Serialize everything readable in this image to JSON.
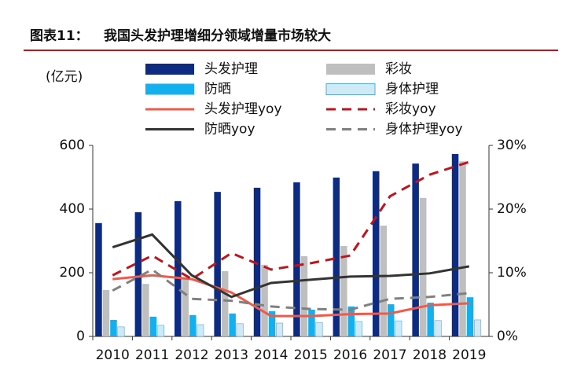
{
  "chart_data": {
    "type": "bar-line",
    "title": "图表11：",
    "subtitle": "我国头发护理增细分领域增量市场较大",
    "y_unit_label": "(亿元)",
    "categories": [
      "2010",
      "2011",
      "2012",
      "2013",
      "2014",
      "2015",
      "2016",
      "2017",
      "2018",
      "2019"
    ],
    "series": [
      {
        "name": "头发护理",
        "color": "#0d2b80",
        "kind": "bar",
        "values": [
          356,
          390,
          425,
          454,
          467,
          484,
          499,
          519,
          543,
          573
        ]
      },
      {
        "name": "彩妆",
        "color": "#bfbfbf",
        "kind": "bar",
        "values": [
          146,
          165,
          185,
          205,
          225,
          252,
          284,
          348,
          435,
          550
        ]
      },
      {
        "name": "防晒",
        "color": "#12b0ee",
        "kind": "bar",
        "values": [
          52,
          62,
          67,
          72,
          79,
          84,
          94,
          101,
          106,
          123
        ]
      },
      {
        "name": "身体护理",
        "color": "#cfe9f7",
        "kind": "bar",
        "values": [
          30,
          35,
          37,
          40,
          42,
          44,
          47,
          49,
          50,
          52
        ]
      },
      {
        "name": "头发护理yoy",
        "color": "#f05a4a",
        "kind": "line",
        "dash": false,
        "axis": "y2",
        "values": [
          9.0,
          9.6,
          9.0,
          6.9,
          3.2,
          3.2,
          3.5,
          3.6,
          4.9,
          5.2
        ]
      },
      {
        "name": "彩妆yoy",
        "color": "#c0141c",
        "kind": "line",
        "dash": true,
        "axis": "y2",
        "values": [
          9.6,
          12.7,
          9.0,
          13.1,
          10.5,
          11.5,
          12.7,
          22,
          25.4,
          27.4
        ]
      },
      {
        "name": "防晒yoy",
        "color": "#333333",
        "kind": "line",
        "dash": false,
        "axis": "y2",
        "values": [
          14,
          16,
          9.6,
          6.2,
          8.4,
          8.9,
          9.4,
          9.5,
          9.9,
          11
        ]
      },
      {
        "name": "身体护理yoy",
        "color": "#808080",
        "kind": "line",
        "dash": true,
        "axis": "y2",
        "values": [
          7.2,
          10.5,
          5.9,
          5.6,
          4.7,
          4.3,
          4.2,
          5.9,
          6.2,
          6.8
        ]
      }
    ],
    "ylim": [
      0,
      600
    ],
    "yticks": [
      0,
      200,
      400,
      600
    ],
    "y2lim": [
      0,
      30
    ],
    "y2ticks": [
      {
        "value": 0,
        "label": "0%"
      },
      {
        "value": 10,
        "label": "10%"
      },
      {
        "value": 20,
        "label": "20%"
      },
      {
        "value": 30,
        "label": "30%"
      }
    ],
    "grid": false
  }
}
